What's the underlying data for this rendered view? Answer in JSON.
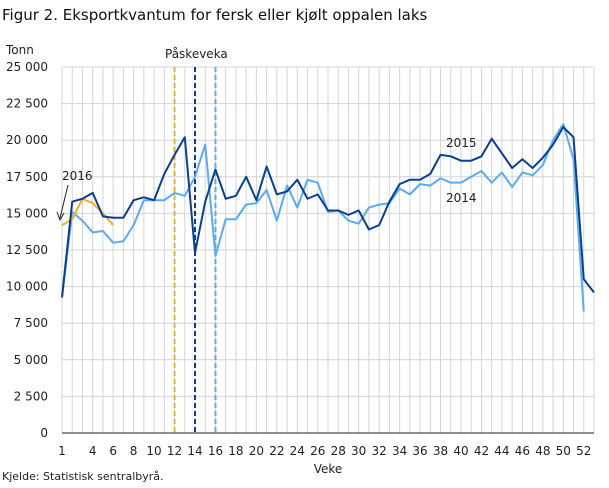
{
  "title": "Figur 2. Eksportkvantum for fersk eller kjølt oppalen laks",
  "source": "Kjelde: Statistisk sentralbyrå.",
  "chart_data": {
    "type": "line",
    "title": "Figur 2. Eksportkvantum for fersk eller kjølt oppalen laks",
    "ylabel": "Tonn",
    "xlabel": "Veke",
    "ylim": [
      0,
      25000
    ],
    "xlim": [
      1,
      53
    ],
    "grid": true,
    "yticks": [
      0,
      2500,
      5000,
      7500,
      10000,
      12500,
      15000,
      17500,
      20000,
      22500,
      25000
    ],
    "ytick_labels": [
      "0",
      "2 500",
      "5 000",
      "7 500",
      "10 000",
      "12 500",
      "15 000",
      "17 500",
      "20 000",
      "22 500",
      "25 000"
    ],
    "xticks": [
      1,
      4,
      6,
      8,
      10,
      12,
      14,
      16,
      18,
      20,
      22,
      24,
      26,
      28,
      30,
      32,
      34,
      36,
      38,
      40,
      42,
      44,
      46,
      48,
      50,
      52
    ],
    "series": [
      {
        "name": "2014",
        "color": "#5aacf0",
        "values": [
          9200,
          15100,
          14500,
          13700,
          13800,
          13000,
          13100,
          14200,
          15900,
          15900,
          15900,
          16400,
          16200,
          17500,
          19700,
          12100,
          14600,
          14600,
          15600,
          15700,
          16600,
          14500,
          16900,
          15400,
          17300,
          17100,
          15100,
          15200,
          14500,
          14300,
          15400,
          15600,
          15700,
          16700,
          16300,
          17000,
          16900,
          17400,
          17100,
          17100,
          17500,
          17900,
          17100,
          17800,
          16800,
          17800,
          17600,
          18300,
          20000,
          21100,
          18700,
          8300
        ]
      },
      {
        "name": "2015",
        "color": "#0b3f8f",
        "values": [
          9300,
          15800,
          16000,
          16400,
          14800,
          14700,
          14700,
          15900,
          16100,
          15900,
          17700,
          19000,
          20200,
          12300,
          15800,
          18000,
          16000,
          16200,
          17500,
          15900,
          18200,
          16300,
          16500,
          17300,
          16000,
          16300,
          15200,
          15200,
          14900,
          15200,
          13900,
          14200,
          15800,
          17000,
          17300,
          17300,
          17700,
          19000,
          18900,
          18600,
          18600,
          18900,
          20100,
          19100,
          18100,
          18700,
          18100,
          18800,
          19700,
          20900,
          20200,
          10500,
          9600
        ]
      },
      {
        "name": "2016",
        "color": "#f0b020",
        "values": [
          14200,
          14600,
          16000,
          15700,
          15000,
          14200
        ]
      }
    ],
    "reference_lines": [
      {
        "week": 12,
        "color": "#f0b020",
        "style": "dashed"
      },
      {
        "week": 14,
        "color": "#0b3f8f",
        "style": "dashed"
      },
      {
        "week": 16,
        "color": "#5aacf0",
        "style": "dashed"
      }
    ],
    "annotations": [
      "Påskeveka",
      "2016",
      "2015",
      "2014"
    ]
  }
}
